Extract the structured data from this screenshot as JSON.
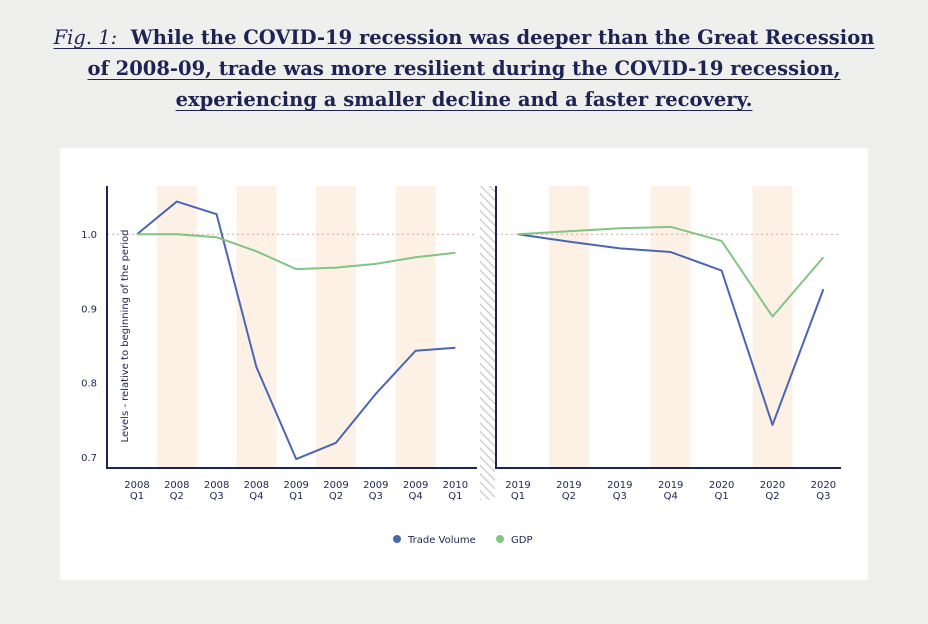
{
  "title": {
    "fig_label": "Fig. 1:",
    "line1": "While the COVID-19 recession was deeper than the Great Recession",
    "line2": "of 2008-09, trade was more resilient during the COVID-19 recession,",
    "line3": "experiencing a smaller decline and a faster recovery."
  },
  "colors": {
    "trade": "#4a66b3",
    "gdp": "#82c482",
    "shade": "#fdf1e6",
    "axis": "#1e2452",
    "background": "#efefed"
  },
  "chart_data": [
    {
      "type": "line",
      "ylabel": "Levels - relative to beginning of the period",
      "ylim": [
        0.685,
        1.065
      ],
      "yticks": [
        0.7,
        0.8,
        0.9,
        1.0
      ],
      "reference_line": 1.0,
      "categories": [
        [
          "2008",
          "Q1"
        ],
        [
          "2008",
          "Q2"
        ],
        [
          "2008",
          "Q3"
        ],
        [
          "2008",
          "Q4"
        ],
        [
          "2009",
          "Q1"
        ],
        [
          "2009",
          "Q2"
        ],
        [
          "2009",
          "Q3"
        ],
        [
          "2009",
          "Q4"
        ],
        [
          "2010",
          "Q1"
        ]
      ],
      "series": [
        {
          "name": "Trade Volume",
          "key": "trade",
          "values": [
            1.0,
            1.044,
            1.027,
            0.821,
            0.697,
            0.719,
            0.785,
            0.843,
            0.847
          ]
        },
        {
          "name": "GDP",
          "key": "gdp",
          "values": [
            1.0,
            1.0,
            0.996,
            0.977,
            0.953,
            0.955,
            0.96,
            0.969,
            0.975
          ]
        }
      ]
    },
    {
      "type": "line",
      "ylim": [
        0.685,
        1.065
      ],
      "reference_line": 1.0,
      "categories": [
        [
          "2019",
          "Q1"
        ],
        [
          "2019",
          "Q2"
        ],
        [
          "2019",
          "Q3"
        ],
        [
          "2019",
          "Q4"
        ],
        [
          "2020",
          "Q1"
        ],
        [
          "2020",
          "Q2"
        ],
        [
          "2020",
          "Q3"
        ]
      ],
      "series": [
        {
          "name": "Trade Volume",
          "key": "trade",
          "values": [
            1.0,
            0.99,
            0.981,
            0.976,
            0.951,
            0.743,
            0.926
          ]
        },
        {
          "name": "GDP",
          "key": "gdp",
          "values": [
            1.0,
            1.004,
            1.008,
            1.01,
            0.991,
            0.889,
            0.969
          ]
        }
      ]
    }
  ],
  "legend": {
    "position": "bottom-center",
    "items": [
      {
        "label": "Trade Volume",
        "key": "trade"
      },
      {
        "label": "GDP",
        "key": "gdp"
      }
    ]
  }
}
